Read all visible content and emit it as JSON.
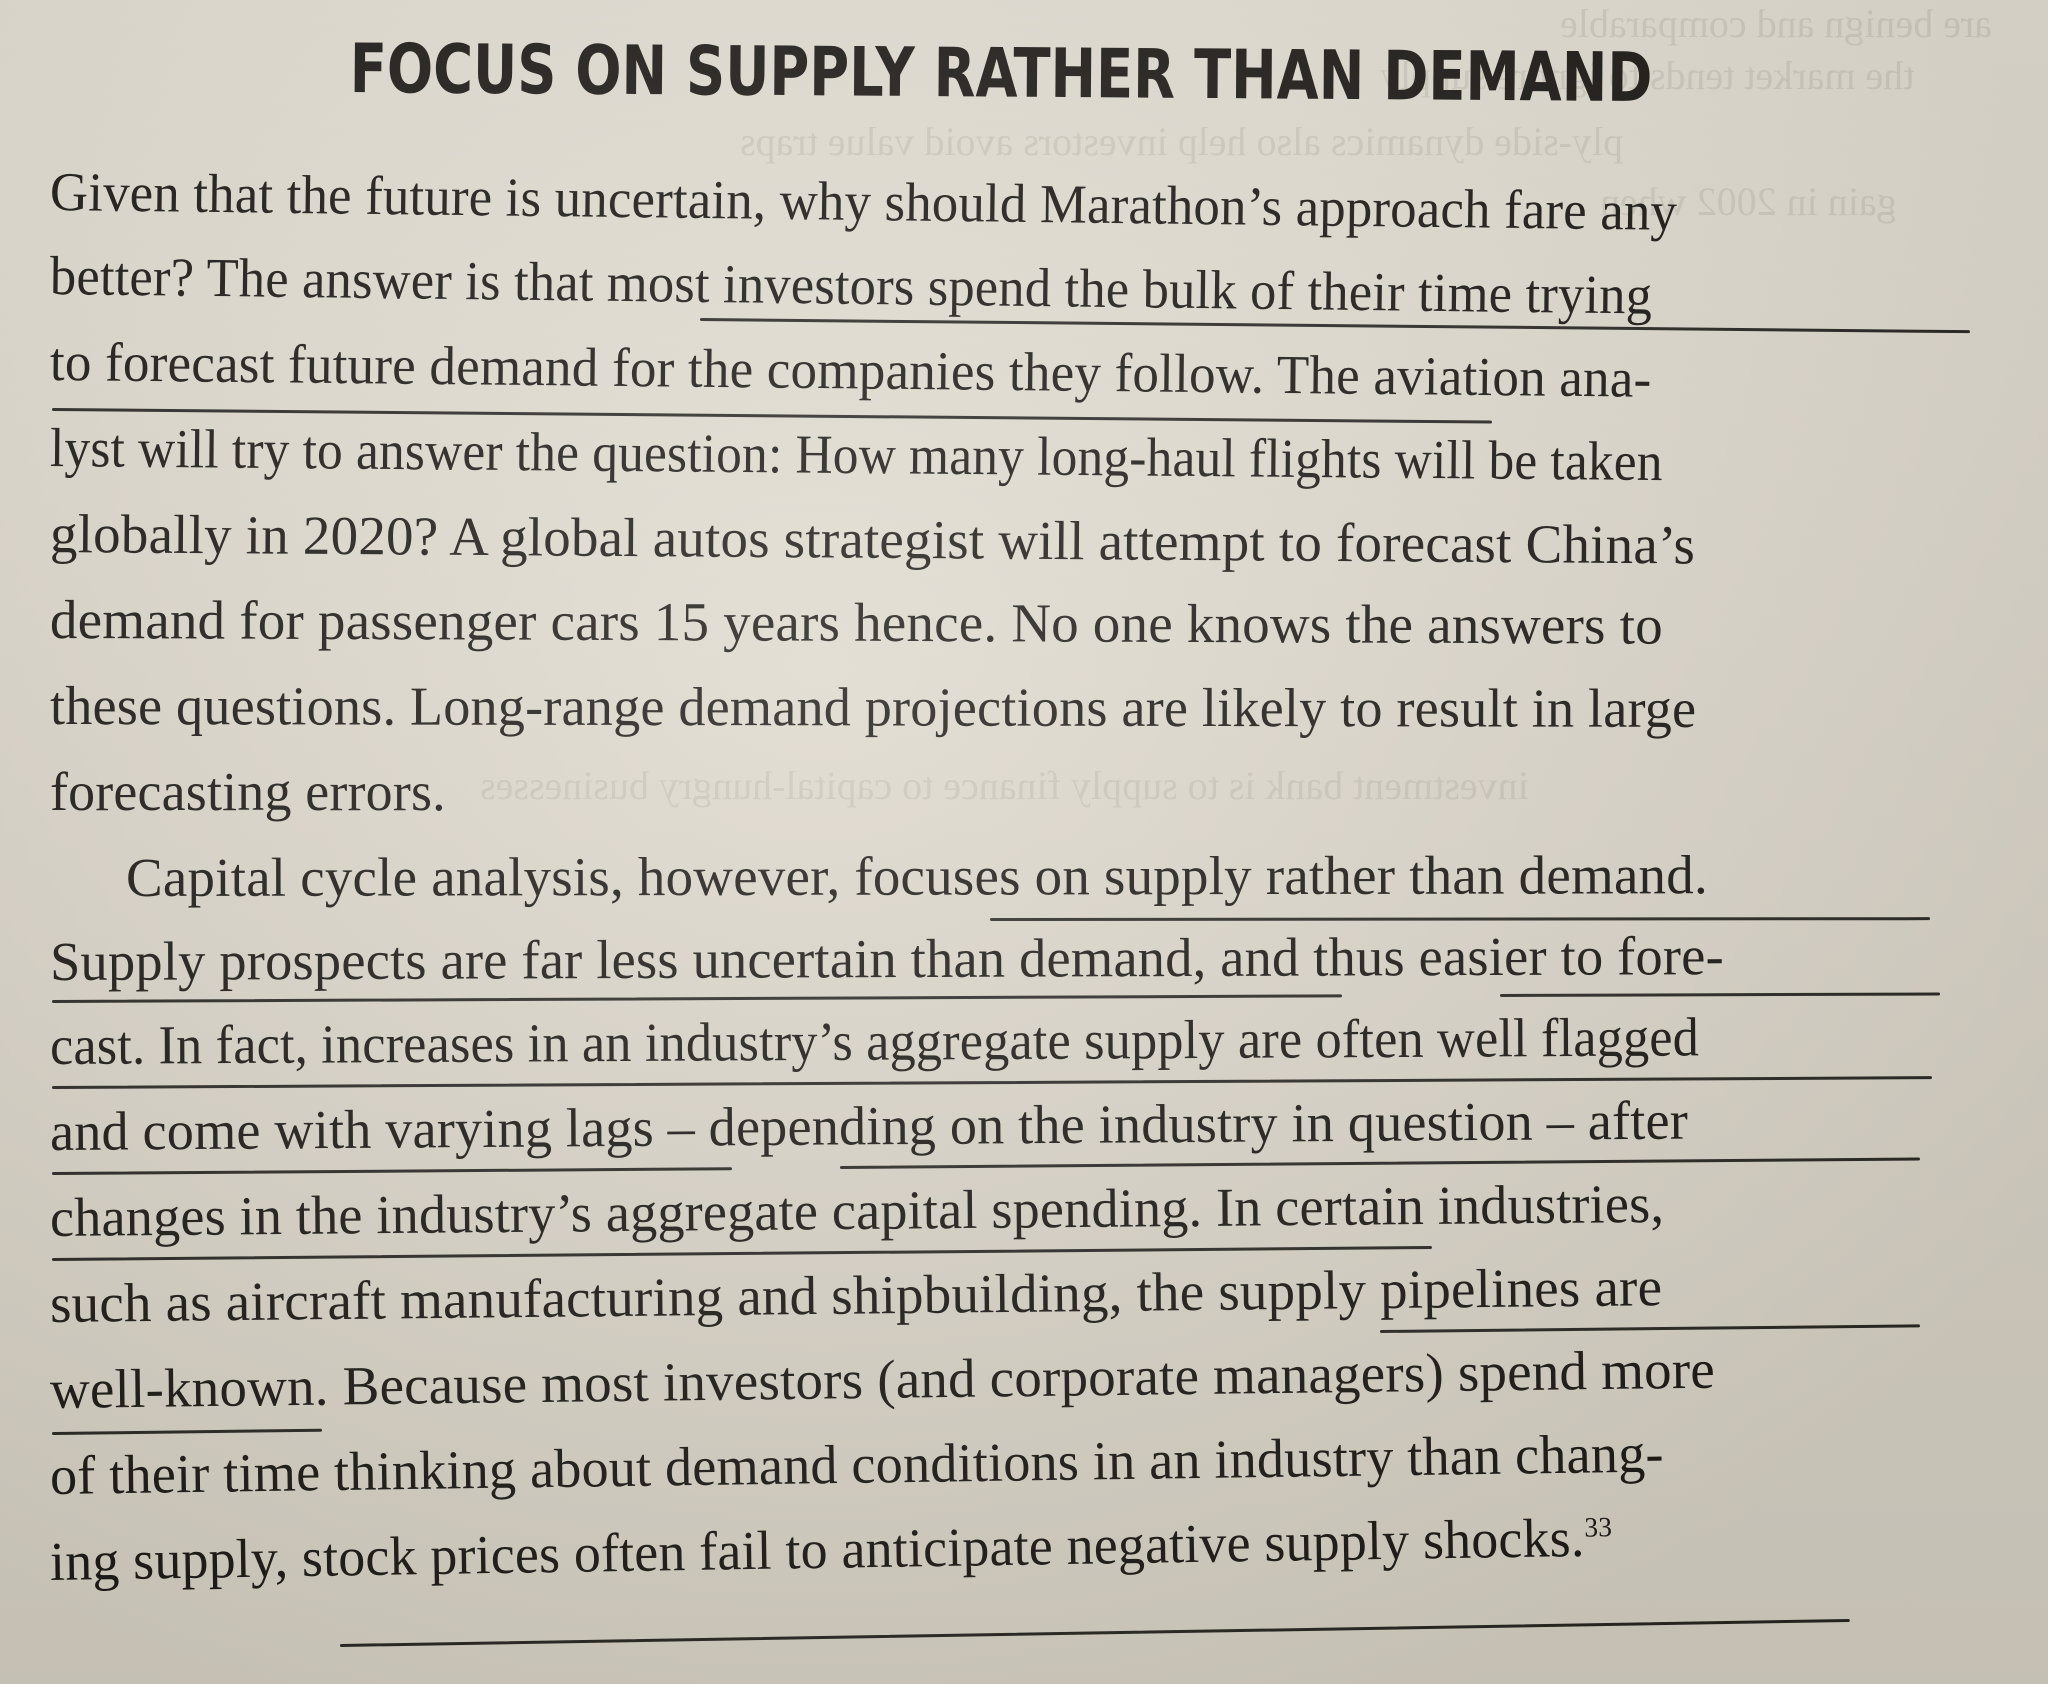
{
  "heading": "FOCUS ON SUPPLY RATHER THAN DEMAND",
  "lines": [
    "Given that the future is uncertain, why should Marathon’s approach fare any",
    "better? The answer is that most investors spend the bulk of their time trying",
    "to forecast future demand for the companies they follow. The aviation ana-",
    "lyst will try to answer the question: How many long-haul flights will be taken",
    "globally in 2020? A global autos strategist will attempt to forecast China’s",
    "demand for passenger cars 15 years hence. No one knows the answers to",
    "these questions. Long-range demand projections are likely to result in large",
    "forecasting errors.",
    "Capital cycle analysis, however, focuses on supply rather than demand.",
    "Supply prospects are far less uncertain than demand, and thus easier to fore-",
    "cast. In fact, increases in an industry’s aggregate supply are often well flagged",
    "and come with varying lags – depending on the industry in question – after",
    "changes in the industry’s aggregate capital spending. In certain industries,",
    "such as aircraft manufacturing and shipbuilding, the supply pipelines are",
    "well-known. Because most investors (and corporate managers) spend more",
    "of their time thinking about demand conditions in an industry than chang-",
    "ing supply, stock prices often fail to anticipate negative supply shocks."
  ],
  "footnote": "33",
  "show_through": [
    "are benign and comparable",
    "the market tends to ignore supply",
    "ply-side dynamics also help investors avoid value traps",
    "gain in 2002 when",
    "investment bank is to supply finance to capital-hungry businesses"
  ]
}
